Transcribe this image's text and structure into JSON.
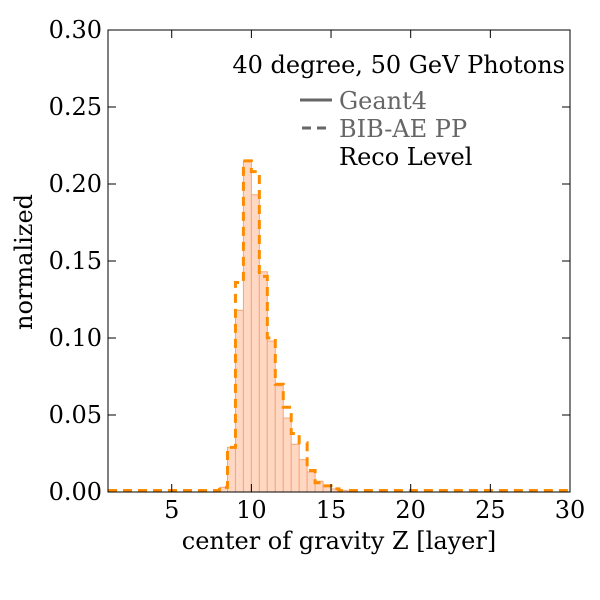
{
  "chart_data": {
    "type": "histogram",
    "title": "",
    "annotation": "40 degree, 50 GeV Photons",
    "xlabel": "center of gravity Z [layer]",
    "ylabel": "normalized",
    "xlim": [
      1,
      30
    ],
    "ylim": [
      0,
      0.3
    ],
    "xticks": [
      5,
      10,
      15,
      20,
      25,
      30
    ],
    "yticks": [
      0.0,
      0.05,
      0.1,
      0.15,
      0.2,
      0.25,
      0.3
    ],
    "ytick_labels": [
      "0.00",
      "0.05",
      "0.10",
      "0.15",
      "0.20",
      "0.25",
      "0.30"
    ],
    "bin_edges": [
      1,
      1.5,
      2,
      2.5,
      3,
      3.5,
      4,
      4.5,
      5,
      5.5,
      6,
      6.5,
      7,
      7.5,
      8,
      8.5,
      9,
      9.5,
      10,
      10.5,
      11,
      11.5,
      12,
      12.5,
      13,
      13.5,
      14,
      14.5,
      15,
      15.5,
      16,
      16.5,
      17,
      17.5,
      18,
      18.5,
      19,
      19.5,
      20,
      20.5,
      21,
      21.5,
      22,
      22.5,
      23,
      23.5,
      24,
      24.5,
      25,
      25.5,
      26,
      26.5,
      27,
      27.5,
      28,
      28.5,
      29,
      29.5,
      30
    ],
    "series": [
      {
        "name": "Geant4",
        "style": "solid",
        "fill": "#ffd8c4",
        "edge": "#f7a676",
        "values": [
          0,
          0,
          0,
          0,
          0,
          0,
          0,
          0,
          0,
          0,
          0,
          0,
          0,
          0,
          0.003,
          0.029,
          0.118,
          0.215,
          0.193,
          0.143,
          0.098,
          0.069,
          0.048,
          0.031,
          0.021,
          0.013,
          0.007,
          0.004,
          0.002,
          0.001,
          0.0005,
          0,
          0,
          0,
          0,
          0,
          0,
          0,
          0,
          0,
          0,
          0,
          0,
          0,
          0,
          0,
          0,
          0,
          0,
          0,
          0,
          0,
          0,
          0,
          0,
          0,
          0,
          0
        ]
      },
      {
        "name": "BIB-AE PP",
        "style": "dashed",
        "color": "#ff8c00",
        "values": [
          0.001,
          0.001,
          0.001,
          0.001,
          0.001,
          0.001,
          0.001,
          0.001,
          0.001,
          0.001,
          0.001,
          0.001,
          0.001,
          0.001,
          0.003,
          0.029,
          0.136,
          0.215,
          0.208,
          0.14,
          0.1,
          0.07,
          0.055,
          0.038,
          0.032,
          0.014,
          0.006,
          0.004,
          0.002,
          0.001,
          0.001,
          0.001,
          0.001,
          0.001,
          0.001,
          0.001,
          0.001,
          0.001,
          0.001,
          0.001,
          0.001,
          0.001,
          0.001,
          0.001,
          0.001,
          0.001,
          0.001,
          0.001,
          0.001,
          0.001,
          0.001,
          0.001,
          0.001,
          0.001,
          0.001,
          0.001,
          0.001,
          0.001
        ]
      }
    ],
    "legend": {
      "placement": "top-right",
      "entries": [
        {
          "label": "Geant4",
          "style": "solid",
          "color": "#666666",
          "text_color": "#666666"
        },
        {
          "label": "BIB-AE PP",
          "style": "dashed",
          "color": "#666666",
          "text_color": "#666666"
        },
        {
          "label": "Reco Level",
          "style": "none",
          "color": "#000000",
          "text_color": "#000000"
        }
      ]
    }
  }
}
